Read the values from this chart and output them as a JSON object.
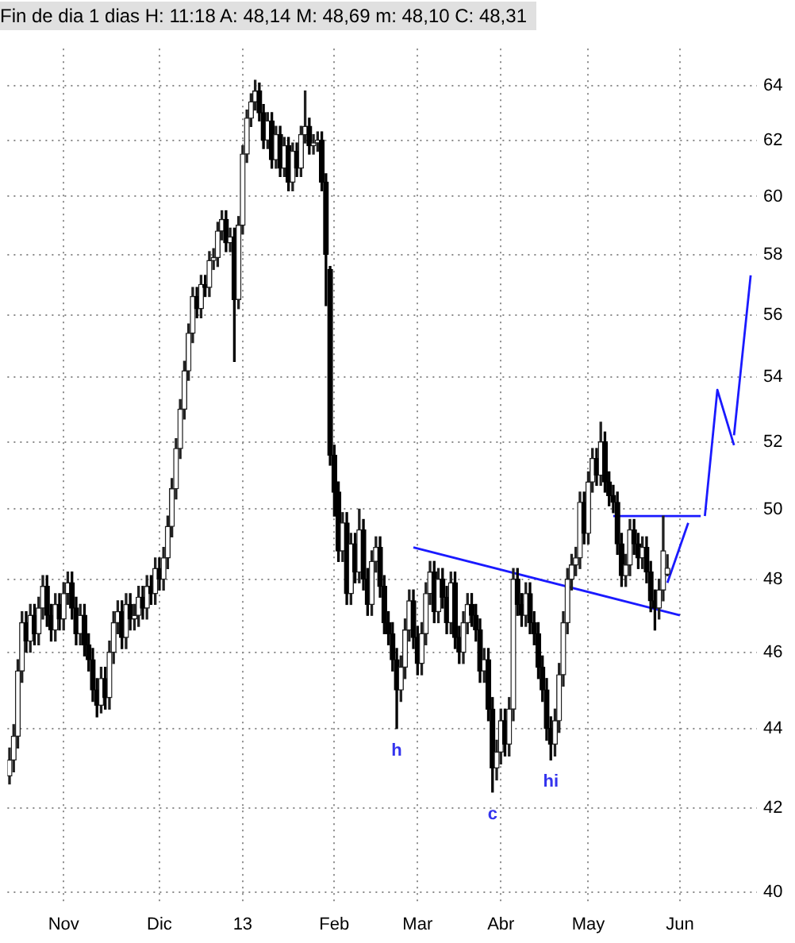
{
  "chart_data": {
    "type": "candlestick",
    "title": "Fin de dia 1 dias H: 11:18 A: 48,14 M: 48,69 m: 48,10 C: 48,31",
    "categories": [
      null,
      null,
      null,
      null,
      null,
      null,
      null,
      null,
      null,
      null,
      null,
      null,
      null,
      "Nov",
      null,
      null,
      null,
      null,
      null,
      null,
      null,
      null,
      null,
      null,
      null,
      null,
      null,
      null,
      null,
      null,
      null,
      null,
      null,
      null,
      null,
      null,
      "Dic",
      null,
      null,
      null,
      null,
      null,
      null,
      null,
      null,
      null,
      null,
      null,
      null,
      null,
      null,
      null,
      null,
      null,
      null,
      null,
      "13",
      null,
      null,
      null,
      null,
      null,
      null,
      null,
      null,
      null,
      null,
      null,
      null,
      null,
      null,
      null,
      null,
      null,
      null,
      null,
      null,
      null,
      "Feb",
      null,
      null,
      null,
      null,
      null,
      null,
      null,
      null,
      null,
      null,
      null,
      null,
      null,
      null,
      null,
      null,
      null,
      null,
      null,
      "Mar",
      null,
      null,
      null,
      null,
      null,
      null,
      null,
      null,
      null,
      null,
      null,
      null,
      null,
      null,
      null,
      null,
      null,
      null,
      null,
      "Abr",
      null,
      null,
      null,
      null,
      null,
      null,
      null,
      null,
      null,
      null,
      null,
      null,
      null,
      null,
      null,
      null,
      null,
      null,
      null,
      null,
      "May",
      null,
      null,
      null,
      null,
      null,
      null,
      null,
      null,
      null,
      null,
      null,
      null,
      null,
      null,
      null,
      null,
      null,
      null,
      null,
      null,
      null,
      "Jun",
      null,
      null,
      null,
      null,
      null,
      null,
      null,
      null,
      null,
      null,
      null,
      null,
      null,
      null,
      null,
      null,
      null,
      null
    ],
    "ohlc": [
      [
        42.8,
        43.5,
        42.6,
        43.2
      ],
      [
        43.2,
        44.1,
        42.9,
        43.8
      ],
      [
        43.8,
        45.8,
        43.5,
        45.5
      ],
      [
        45.5,
        47.1,
        45.2,
        46.8
      ],
      [
        46.8,
        47.1,
        46.0,
        46.3
      ],
      [
        46.3,
        47.3,
        46.0,
        47.0
      ],
      [
        47.0,
        47.3,
        46.2,
        46.5
      ],
      [
        46.5,
        47.5,
        46.2,
        47.2
      ],
      [
        47.2,
        48.1,
        46.9,
        47.8
      ],
      [
        47.8,
        48.1,
        46.7,
        47.0
      ],
      [
        47.0,
        47.3,
        46.3,
        46.6
      ],
      [
        46.6,
        47.6,
        46.3,
        47.3
      ],
      [
        47.3,
        47.6,
        46.6,
        46.9
      ],
      [
        46.9,
        47.9,
        46.6,
        47.6
      ],
      [
        47.6,
        48.2,
        47.3,
        47.9
      ],
      [
        47.9,
        48.2,
        46.9,
        47.2
      ],
      [
        47.2,
        47.5,
        46.2,
        46.5
      ],
      [
        46.5,
        47.3,
        46.2,
        47.0
      ],
      [
        47.0,
        47.3,
        45.9,
        46.2
      ],
      [
        46.2,
        46.5,
        45.5,
        45.8
      ],
      [
        45.8,
        46.1,
        44.7,
        45.0
      ],
      [
        45.0,
        45.3,
        44.3,
        44.6
      ],
      [
        44.6,
        45.6,
        44.4,
        45.3
      ],
      [
        45.3,
        45.6,
        44.5,
        44.8
      ],
      [
        44.8,
        46.3,
        44.5,
        46.0
      ],
      [
        46.0,
        47.1,
        45.7,
        46.8
      ],
      [
        46.8,
        47.4,
        46.5,
        47.1
      ],
      [
        47.1,
        47.4,
        46.1,
        46.4
      ],
      [
        46.4,
        47.6,
        46.1,
        47.3
      ],
      [
        47.3,
        47.6,
        46.6,
        46.9
      ],
      [
        46.9,
        47.3,
        46.6,
        47.0
      ],
      [
        47.0,
        47.8,
        46.7,
        47.5
      ],
      [
        47.5,
        47.8,
        46.9,
        47.2
      ],
      [
        47.2,
        48.1,
        46.9,
        47.8
      ],
      [
        47.8,
        48.1,
        47.3,
        47.6
      ],
      [
        47.6,
        48.6,
        47.3,
        48.3
      ],
      [
        48.3,
        48.6,
        47.7,
        48.0
      ],
      [
        48.0,
        48.9,
        47.7,
        48.6
      ],
      [
        48.6,
        49.8,
        48.3,
        49.5
      ],
      [
        49.5,
        50.9,
        49.2,
        50.6
      ],
      [
        50.6,
        52.1,
        50.3,
        51.8
      ],
      [
        51.8,
        53.3,
        51.5,
        53.0
      ],
      [
        53.0,
        54.5,
        52.7,
        54.2
      ],
      [
        54.2,
        55.7,
        53.9,
        55.4
      ],
      [
        55.4,
        56.9,
        55.1,
        56.6
      ],
      [
        56.6,
        56.9,
        55.9,
        56.2
      ],
      [
        56.2,
        57.3,
        55.9,
        57.0
      ],
      [
        57.0,
        57.3,
        56.6,
        56.9
      ],
      [
        56.9,
        58.1,
        56.6,
        57.8
      ],
      [
        57.8,
        58.2,
        57.5,
        57.9
      ],
      [
        57.9,
        59.1,
        57.6,
        58.8
      ],
      [
        58.8,
        59.5,
        58.5,
        59.2
      ],
      [
        59.2,
        59.5,
        58.1,
        58.4
      ],
      [
        58.4,
        58.9,
        58.1,
        58.6
      ],
      [
        58.6,
        58.9,
        54.5,
        56.5
      ],
      [
        56.5,
        59.3,
        56.2,
        59.0
      ],
      [
        59.0,
        61.8,
        58.7,
        61.5
      ],
      [
        61.5,
        63.1,
        61.2,
        62.8
      ],
      [
        62.8,
        63.7,
        62.5,
        63.4
      ],
      [
        63.4,
        64.2,
        63.1,
        63.8
      ],
      [
        63.8,
        64.1,
        62.7,
        63.0
      ],
      [
        63.0,
        63.3,
        61.7,
        62.0
      ],
      [
        62.0,
        63.0,
        61.7,
        62.7
      ],
      [
        62.7,
        63.0,
        61.0,
        61.3
      ],
      [
        61.3,
        62.5,
        61.0,
        62.2
      ],
      [
        62.2,
        62.5,
        60.7,
        61.0
      ],
      [
        61.0,
        62.1,
        60.7,
        61.8
      ],
      [
        61.8,
        62.1,
        60.2,
        60.5
      ],
      [
        60.5,
        61.9,
        60.2,
        61.6
      ],
      [
        61.6,
        61.9,
        60.7,
        61.0
      ],
      [
        61.0,
        62.5,
        60.7,
        62.2
      ],
      [
        62.2,
        63.8,
        61.9,
        62.5
      ],
      [
        62.5,
        62.8,
        61.5,
        61.8
      ],
      [
        61.8,
        62.2,
        61.5,
        61.9
      ],
      [
        61.9,
        62.3,
        61.6,
        62.0
      ],
      [
        62.0,
        62.3,
        60.2,
        60.5
      ],
      [
        60.5,
        60.8,
        56.3,
        58.0
      ],
      [
        57.5,
        57.6,
        51.3,
        51.6
      ],
      [
        51.6,
        51.9,
        49.8,
        50.5
      ],
      [
        50.5,
        50.8,
        48.5,
        48.8
      ],
      [
        48.8,
        49.9,
        48.5,
        49.6
      ],
      [
        49.6,
        49.9,
        47.3,
        47.6
      ],
      [
        47.6,
        49.3,
        47.3,
        49.0
      ],
      [
        49.0,
        49.3,
        47.9,
        48.2
      ],
      [
        48.2,
        50.0,
        47.9,
        49.4
      ],
      [
        49.4,
        49.7,
        47.7,
        48.0
      ],
      [
        48.0,
        48.3,
        47.0,
        47.3
      ],
      [
        47.3,
        48.8,
        47.0,
        48.5
      ],
      [
        48.5,
        49.2,
        48.2,
        48.9
      ],
      [
        48.9,
        49.2,
        47.5,
        47.8
      ],
      [
        47.8,
        48.1,
        46.5,
        46.8
      ],
      [
        46.8,
        47.1,
        46.2,
        46.5
      ],
      [
        46.5,
        46.8,
        45.5,
        45.8
      ],
      [
        45.8,
        46.1,
        44.0,
        45.0
      ],
      [
        45.0,
        45.9,
        44.7,
        45.6
      ],
      [
        45.6,
        46.9,
        45.3,
        46.6
      ],
      [
        46.6,
        47.7,
        46.3,
        47.4
      ],
      [
        47.4,
        47.7,
        46.1,
        46.4
      ],
      [
        46.4,
        46.7,
        45.4,
        45.7
      ],
      [
        45.7,
        46.8,
        45.4,
        46.5
      ],
      [
        46.5,
        47.9,
        46.2,
        47.6
      ],
      [
        47.6,
        48.5,
        47.3,
        48.2
      ],
      [
        48.2,
        48.5,
        46.8,
        47.1
      ],
      [
        47.1,
        48.3,
        46.8,
        48.0
      ],
      [
        48.0,
        48.3,
        47.2,
        47.5
      ],
      [
        47.5,
        47.8,
        46.5,
        46.8
      ],
      [
        46.8,
        48.2,
        46.5,
        47.9
      ],
      [
        47.9,
        48.2,
        46.1,
        46.4
      ],
      [
        46.4,
        46.7,
        45.7,
        46.0
      ],
      [
        46.0,
        47.1,
        45.7,
        46.8
      ],
      [
        46.8,
        47.6,
        46.5,
        47.3
      ],
      [
        47.3,
        47.6,
        46.7,
        47.0
      ],
      [
        47.0,
        47.3,
        46.3,
        46.6
      ],
      [
        46.6,
        46.9,
        45.2,
        45.5
      ],
      [
        45.5,
        46.1,
        45.2,
        45.8
      ],
      [
        45.8,
        46.1,
        44.2,
        44.5
      ],
      [
        44.5,
        44.8,
        42.4,
        43.0
      ],
      [
        43.0,
        43.7,
        42.7,
        43.4
      ],
      [
        43.4,
        44.5,
        43.1,
        44.2
      ],
      [
        44.2,
        44.5,
        43.3,
        43.6
      ],
      [
        43.6,
        44.8,
        43.3,
        44.5
      ],
      [
        44.5,
        48.3,
        44.2,
        48.0
      ],
      [
        48.0,
        48.3,
        47.0,
        47.3
      ],
      [
        47.3,
        47.6,
        46.7,
        47.0
      ],
      [
        47.0,
        47.9,
        46.7,
        47.6
      ],
      [
        47.6,
        47.9,
        46.5,
        46.8
      ],
      [
        46.8,
        47.1,
        46.2,
        46.5
      ],
      [
        46.5,
        46.8,
        45.3,
        45.6
      ],
      [
        45.6,
        45.9,
        44.7,
        45.0
      ],
      [
        45.0,
        45.3,
        43.7,
        44.0
      ],
      [
        44.0,
        44.3,
        43.2,
        43.6
      ],
      [
        43.6,
        44.5,
        43.3,
        44.2
      ],
      [
        44.2,
        45.7,
        43.9,
        45.4
      ],
      [
        45.4,
        47.1,
        45.1,
        46.8
      ],
      [
        46.8,
        48.3,
        46.5,
        48.0
      ],
      [
        48.0,
        48.7,
        47.7,
        48.4
      ],
      [
        48.4,
        48.9,
        48.1,
        48.6
      ],
      [
        48.6,
        50.5,
        48.3,
        50.2
      ],
      [
        50.2,
        50.5,
        49.0,
        49.3
      ],
      [
        49.3,
        51.1,
        49.0,
        50.8
      ],
      [
        50.8,
        51.8,
        50.5,
        51.5
      ],
      [
        51.5,
        51.8,
        50.7,
        51.0
      ],
      [
        51.0,
        52.6,
        50.7,
        52.0
      ],
      [
        52.0,
        52.3,
        50.5,
        50.8
      ],
      [
        50.8,
        51.1,
        50.1,
        50.4
      ],
      [
        50.4,
        50.7,
        49.9,
        50.2
      ],
      [
        50.2,
        50.5,
        48.7,
        49.0
      ],
      [
        49.0,
        49.3,
        47.8,
        48.1
      ],
      [
        48.1,
        48.7,
        47.8,
        48.4
      ],
      [
        48.4,
        49.7,
        48.1,
        49.4
      ],
      [
        49.4,
        49.7,
        48.7,
        49.0
      ],
      [
        49.0,
        49.3,
        48.3,
        48.6
      ],
      [
        48.6,
        49.2,
        48.3,
        48.9
      ],
      [
        48.9,
        49.2,
        47.9,
        48.2
      ],
      [
        48.2,
        48.5,
        47.1,
        47.4
      ],
      [
        47.4,
        47.7,
        46.6,
        47.2
      ],
      [
        47.2,
        48.0,
        46.9,
        47.7
      ],
      [
        47.7,
        49.8,
        47.4,
        48.8
      ],
      [
        48.14,
        48.69,
        48.1,
        48.31
      ],
      null,
      null,
      null,
      null,
      null,
      null,
      null,
      null,
      null,
      null,
      null,
      null,
      null,
      null,
      null,
      null,
      null,
      null,
      null,
      null,
      null
    ],
    "series": [
      {
        "type": "line",
        "color": "#1a1aff",
        "values": [
          null,
          null,
          null,
          null,
          null,
          null,
          null,
          null,
          null,
          null,
          null,
          null,
          null,
          null,
          null,
          null,
          null,
          null,
          null,
          null,
          null,
          null,
          null,
          null,
          null,
          null,
          null,
          null,
          null,
          null,
          null,
          null,
          null,
          null,
          null,
          null,
          null,
          null,
          null,
          null,
          null,
          null,
          null,
          null,
          null,
          null,
          null,
          null,
          null,
          null,
          null,
          null,
          null,
          null,
          null,
          null,
          null,
          null,
          null,
          null,
          null,
          null,
          null,
          null,
          null,
          null,
          null,
          null,
          null,
          null,
          null,
          null,
          null,
          null,
          null,
          null,
          null,
          null,
          null,
          null,
          null,
          null,
          null,
          null,
          null,
          null,
          null,
          null,
          null,
          null,
          null,
          null,
          null,
          null,
          null,
          null,
          null,
          48.9,
          null,
          null,
          null,
          null,
          null,
          null,
          null,
          null,
          null,
          null,
          null,
          null,
          null,
          null,
          null,
          null,
          null,
          null,
          null,
          null,
          null,
          null,
          null,
          null,
          null,
          null,
          null,
          null,
          null,
          null,
          null,
          null,
          null,
          null,
          null,
          null,
          null,
          null,
          null,
          null,
          null,
          null,
          null,
          null,
          null,
          null,
          null,
          null,
          null,
          null,
          null,
          null,
          null,
          null,
          null,
          null,
          null,
          null,
          null,
          null,
          null,
          null,
          null,
          47.0,
          null,
          null,
          null,
          null,
          null,
          null,
          null,
          null,
          null,
          null,
          null,
          null,
          null,
          null,
          null,
          null,
          null,
          null
        ]
      },
      {
        "type": "line",
        "color": "#1a1aff",
        "values": [
          null,
          null,
          null,
          null,
          null,
          null,
          null,
          null,
          null,
          null,
          null,
          null,
          null,
          null,
          null,
          null,
          null,
          null,
          null,
          null,
          null,
          null,
          null,
          null,
          null,
          null,
          null,
          null,
          null,
          null,
          null,
          null,
          null,
          null,
          null,
          null,
          null,
          null,
          null,
          null,
          null,
          null,
          null,
          null,
          null,
          null,
          null,
          null,
          null,
          null,
          null,
          null,
          null,
          null,
          null,
          null,
          null,
          null,
          null,
          null,
          null,
          null,
          null,
          null,
          null,
          null,
          null,
          null,
          null,
          null,
          null,
          null,
          null,
          null,
          null,
          null,
          null,
          null,
          null,
          null,
          null,
          null,
          null,
          null,
          null,
          null,
          null,
          null,
          null,
          null,
          null,
          null,
          null,
          null,
          null,
          null,
          null,
          null,
          null,
          null,
          null,
          null,
          null,
          null,
          null,
          null,
          null,
          null,
          null,
          null,
          null,
          null,
          null,
          null,
          null,
          null,
          null,
          null,
          null,
          null,
          null,
          null,
          null,
          null,
          null,
          null,
          null,
          null,
          null,
          null,
          null,
          null,
          null,
          null,
          null,
          null,
          null,
          null,
          null,
          null,
          null,
          null,
          null,
          null,
          null,
          49.8,
          null,
          null,
          null,
          null,
          null,
          null,
          null,
          null,
          null,
          null,
          null,
          null,
          null,
          null,
          null,
          null,
          null,
          null,
          null,
          null,
          49.8,
          null,
          null,
          null,
          null,
          null,
          null,
          null,
          null,
          null,
          null,
          null,
          null,
          null
        ]
      },
      {
        "type": "line",
        "color": "#1a1aff",
        "values": [
          null,
          null,
          null,
          null,
          null,
          null,
          null,
          null,
          null,
          null,
          null,
          null,
          null,
          null,
          null,
          null,
          null,
          null,
          null,
          null,
          null,
          null,
          null,
          null,
          null,
          null,
          null,
          null,
          null,
          null,
          null,
          null,
          null,
          null,
          null,
          null,
          null,
          null,
          null,
          null,
          null,
          null,
          null,
          null,
          null,
          null,
          null,
          null,
          null,
          null,
          null,
          null,
          null,
          null,
          null,
          null,
          null,
          null,
          null,
          null,
          null,
          null,
          null,
          null,
          null,
          null,
          null,
          null,
          null,
          null,
          null,
          null,
          null,
          null,
          null,
          null,
          null,
          null,
          null,
          null,
          null,
          null,
          null,
          null,
          null,
          null,
          null,
          null,
          null,
          null,
          null,
          null,
          null,
          null,
          null,
          null,
          null,
          null,
          null,
          null,
          null,
          null,
          null,
          null,
          null,
          null,
          null,
          null,
          null,
          null,
          null,
          null,
          null,
          null,
          null,
          null,
          null,
          null,
          null,
          null,
          null,
          null,
          null,
          null,
          null,
          null,
          null,
          null,
          null,
          null,
          null,
          null,
          null,
          null,
          null,
          null,
          null,
          null,
          null,
          null,
          null,
          null,
          null,
          null,
          null,
          null,
          null,
          null,
          null,
          null,
          null,
          null,
          null,
          null,
          null,
          null,
          null,
          null,
          47.9,
          null,
          null,
          null,
          null,
          49.6,
          null,
          null,
          null,
          null,
          null,
          null,
          null,
          null,
          null,
          null,
          null,
          null,
          null,
          null,
          null,
          null
        ]
      },
      {
        "type": "line",
        "color": "#1a1aff",
        "values": [
          null,
          null,
          null,
          null,
          null,
          null,
          null,
          null,
          null,
          null,
          null,
          null,
          null,
          null,
          null,
          null,
          null,
          null,
          null,
          null,
          null,
          null,
          null,
          null,
          null,
          null,
          null,
          null,
          null,
          null,
          null,
          null,
          null,
          null,
          null,
          null,
          null,
          null,
          null,
          null,
          null,
          null,
          null,
          null,
          null,
          null,
          null,
          null,
          null,
          null,
          null,
          null,
          null,
          null,
          null,
          null,
          null,
          null,
          null,
          null,
          null,
          null,
          null,
          null,
          null,
          null,
          null,
          null,
          null,
          null,
          null,
          null,
          null,
          null,
          null,
          null,
          null,
          null,
          null,
          null,
          null,
          null,
          null,
          null,
          null,
          null,
          null,
          null,
          null,
          null,
          null,
          null,
          null,
          null,
          null,
          null,
          null,
          null,
          null,
          null,
          null,
          null,
          null,
          null,
          null,
          null,
          null,
          null,
          null,
          null,
          null,
          null,
          null,
          null,
          null,
          null,
          null,
          null,
          null,
          null,
          null,
          null,
          null,
          null,
          null,
          null,
          null,
          null,
          null,
          null,
          null,
          null,
          null,
          null,
          null,
          null,
          null,
          null,
          null,
          null,
          null,
          null,
          null,
          null,
          null,
          null,
          null,
          null,
          null,
          null,
          null,
          null,
          null,
          null,
          null,
          null,
          null,
          null,
          null,
          null,
          null,
          null,
          null,
          null,
          null,
          null,
          null,
          49.8,
          null,
          null,
          53.6,
          null,
          null,
          null,
          51.9,
          null,
          null,
          null,
          null,
          null
        ]
      },
      {
        "type": "line",
        "color": "#1a1aff",
        "values": [
          null,
          null,
          null,
          null,
          null,
          null,
          null,
          null,
          null,
          null,
          null,
          null,
          null,
          null,
          null,
          null,
          null,
          null,
          null,
          null,
          null,
          null,
          null,
          null,
          null,
          null,
          null,
          null,
          null,
          null,
          null,
          null,
          null,
          null,
          null,
          null,
          null,
          null,
          null,
          null,
          null,
          null,
          null,
          null,
          null,
          null,
          null,
          null,
          null,
          null,
          null,
          null,
          null,
          null,
          null,
          null,
          null,
          null,
          null,
          null,
          null,
          null,
          null,
          null,
          null,
          null,
          null,
          null,
          null,
          null,
          null,
          null,
          null,
          null,
          null,
          null,
          null,
          null,
          null,
          null,
          null,
          null,
          null,
          null,
          null,
          null,
          null,
          null,
          null,
          null,
          null,
          null,
          null,
          null,
          null,
          null,
          null,
          null,
          null,
          null,
          null,
          null,
          null,
          null,
          null,
          null,
          null,
          null,
          null,
          null,
          null,
          null,
          null,
          null,
          null,
          null,
          null,
          null,
          null,
          null,
          null,
          null,
          null,
          null,
          null,
          null,
          null,
          null,
          null,
          null,
          null,
          null,
          null,
          null,
          null,
          null,
          null,
          null,
          null,
          null,
          null,
          null,
          null,
          null,
          null,
          null,
          null,
          null,
          null,
          null,
          null,
          null,
          null,
          null,
          null,
          null,
          null,
          null,
          null,
          null,
          null,
          null,
          null,
          null,
          null,
          null,
          null,
          null,
          null,
          null,
          null,
          null,
          null,
          null,
          52.2,
          null,
          null,
          null,
          57.3,
          null
        ]
      }
    ],
    "annotations": [
      "h",
      "c",
      "hi"
    ],
    "ylim": [
      39.7,
      65.4
    ],
    "yticks": [
      40,
      42,
      44,
      46,
      48,
      50,
      52,
      54,
      56,
      58,
      60,
      62,
      64
    ],
    "log": true,
    "grid": true
  }
}
